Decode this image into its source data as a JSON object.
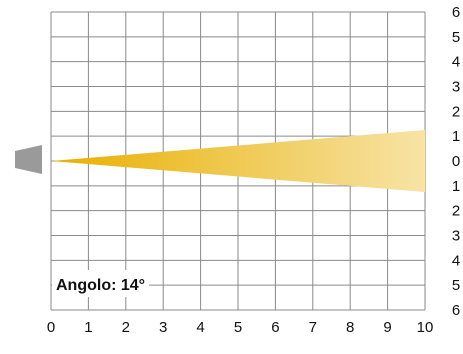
{
  "diagram": {
    "angle_label": "Angolo: 14°",
    "angle_degrees": 14,
    "x_axis": {
      "ticks": [
        "0",
        "1",
        "2",
        "3",
        "4",
        "5",
        "6",
        "7",
        "8",
        "9",
        "10"
      ],
      "range": [
        0,
        10
      ]
    },
    "y_axis": {
      "ticks": [
        "6",
        "5",
        "4",
        "3",
        "2",
        "1",
        "0",
        "1",
        "2",
        "3",
        "4",
        "5",
        "6"
      ],
      "range": [
        -6,
        6
      ]
    },
    "beam": {
      "start_x": 0,
      "end_x": 10,
      "half_width_at_end": 1.25
    },
    "colors": {
      "grid": "#8a8a8a",
      "beam_start": "#e8b000",
      "beam_end": "#f7e3a6",
      "lamp": "#9a9a9a",
      "text": "#111111"
    },
    "icons": {
      "lamp": "lamp-icon"
    }
  }
}
